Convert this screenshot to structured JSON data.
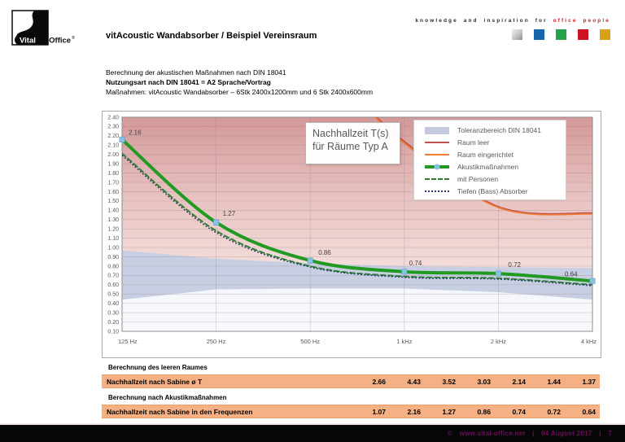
{
  "header": {
    "logo": {
      "vital": "Vital",
      "office": "-Office",
      "reg": "®"
    },
    "tagline_black": "knowledge and inspiration for",
    "tagline_red": "office people",
    "squares": [
      "silver",
      "#1566ad",
      "#27a24c",
      "#cf1222",
      "#d7a217"
    ],
    "title": "vitAcoustic Wandabsorber / Beispiel Vereinsraum"
  },
  "intro": {
    "line1": "Berechnung der akustischen Maßnahmen nach DIN 18041",
    "line2": "Nutzungsart nach DIN 18041 = A2 Sprache/Vortrag",
    "line3": "Maßnahmen: vitAcoustic Wandabsorber – 6Stk 2400x1200mm und 6 Stk 2400x600mm"
  },
  "chart_data": {
    "type": "line",
    "title_line1": "Nachhallzeit T(s)",
    "title_line2": "für Räume Typ A",
    "xlabel": "",
    "ylabel": "",
    "categories": [
      "125 Hz",
      "250 Hz",
      "500 Hz",
      "1 kHz",
      "2 kHz",
      "4 kHz"
    ],
    "ylim": [
      0.1,
      2.4
    ],
    "ytick_step": 0.1,
    "grid": true,
    "legend_position": "top-right",
    "series": [
      {
        "name": "Toleranzbereich DIN 18041",
        "type": "band",
        "color": "#c3c9de",
        "upper": [
          0.97,
          0.88,
          0.83,
          0.8,
          0.79,
          0.78
        ],
        "lower": [
          0.44,
          0.55,
          0.56,
          0.56,
          0.52,
          0.44
        ]
      },
      {
        "name": "Raum leer",
        "type": "line",
        "color": "#c0504d",
        "values": [
          4.43,
          3.52,
          3.03,
          2.14,
          1.44,
          1.37
        ]
      },
      {
        "name": "Raum eingerichtet",
        "type": "line",
        "color": "#ed7d31",
        "values": [
          4.43,
          3.52,
          3.03,
          2.12,
          1.43,
          1.36
        ]
      },
      {
        "name": "Akustikmaßnahmen",
        "type": "line-marker",
        "color": "#219a21",
        "marker_color": "#8bc1e0",
        "values": [
          2.16,
          1.27,
          0.86,
          0.74,
          0.72,
          0.64
        ],
        "labels": [
          "2.16",
          "1.27",
          "0.86",
          "0.74",
          "0.72",
          "0.64"
        ]
      },
      {
        "name": "mit Personen",
        "type": "dashed",
        "color": "#2e7d32",
        "values": [
          2.01,
          1.18,
          0.8,
          0.69,
          0.67,
          0.6
        ]
      },
      {
        "name": "Tiefen (Bass) Absorber",
        "type": "dotted",
        "color": "#24366b",
        "values": [
          1.99,
          1.16,
          0.79,
          0.68,
          0.66,
          0.59
        ]
      }
    ]
  },
  "tables": [
    {
      "caption": "Berechnung des leeren Raumes",
      "row_label": "Nachhallzeit nach Sabine ø T",
      "values": [
        "2.66",
        "4.43",
        "3.52",
        "3.03",
        "2.14",
        "1.44",
        "1.37"
      ]
    },
    {
      "caption": "Berechnung nach Akustikmaßnahmen",
      "row_label": "Nachhallzeit nach Sabine in den Frequenzen",
      "values": [
        "1.07",
        "2.16",
        "1.27",
        "0.86",
        "0.74",
        "0.72",
        "0.64"
      ]
    }
  ],
  "footer": {
    "copyright": "©",
    "url": "www.vital-office.net",
    "separator": "|",
    "date": "04 August 2017",
    "page": "7"
  }
}
